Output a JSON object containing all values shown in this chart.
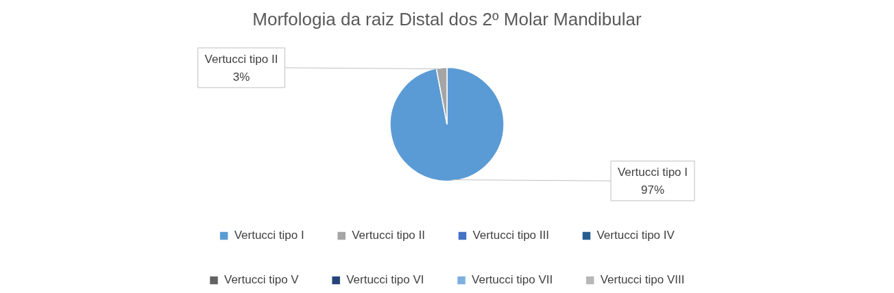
{
  "chart_data": {
    "type": "pie",
    "title": "Morfologia da raiz Distal dos 2º Molar Mandibular",
    "categories": [
      "Vertucci tipo I",
      "Vertucci tipo II",
      "Vertucci tipo III",
      "Vertucci tipo IV",
      "Vertucci tipo V",
      "Vertucci tipo VI",
      "Vertucci tipo VII",
      "Vertucci tipo VIII"
    ],
    "values": [
      97,
      3,
      0,
      0,
      0,
      0,
      0,
      0
    ],
    "colors": [
      "#5b9bd5",
      "#a5a5a5",
      "#4472c4",
      "#255e91",
      "#636363",
      "#264478",
      "#7cafdd",
      "#b7b7b7"
    ],
    "value_labels": [
      "97%",
      "3%",
      null,
      null,
      null,
      null,
      null,
      null
    ],
    "legend": "bottom"
  }
}
